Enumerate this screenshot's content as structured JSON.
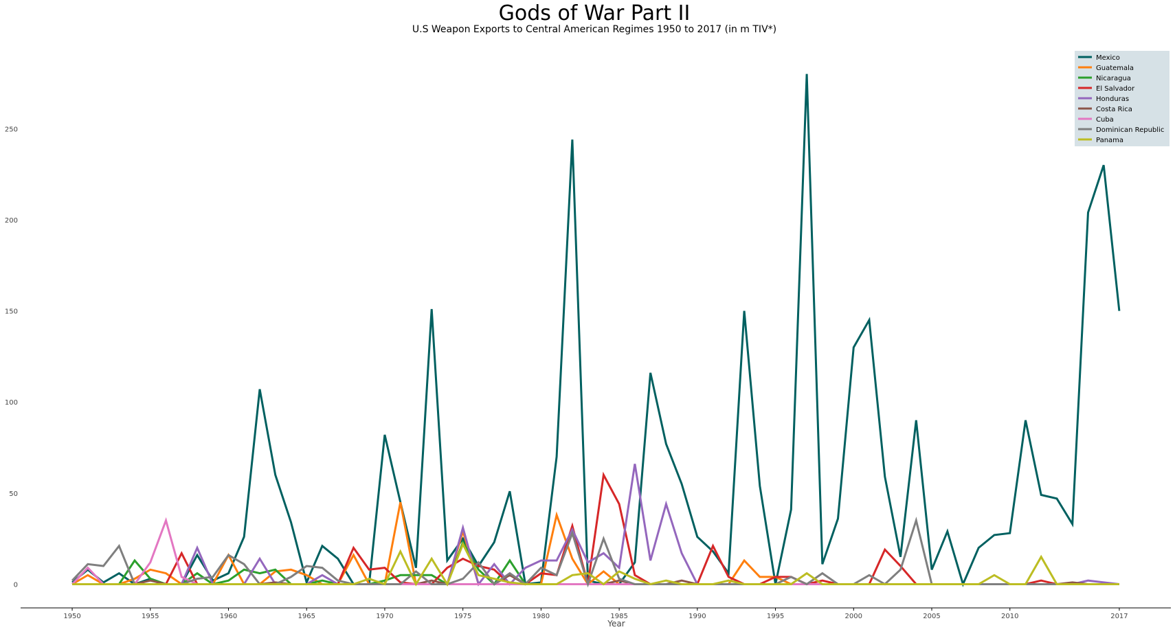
{
  "chart_data": {
    "type": "line",
    "title": "Gods of War Part II",
    "subtitle": "U.S Weapon Exports to Central American Regimes 1950 to 2017 (in m TIV*)",
    "xlabel": "Year",
    "ylabel": "",
    "xlim": [
      1946.7,
      2020.3
    ],
    "ylim": [
      -13,
      298
    ],
    "x_ticks": [
      1950,
      1955,
      1960,
      1965,
      1970,
      1975,
      1980,
      1985,
      1990,
      1995,
      2000,
      2005,
      2010,
      2017
    ],
    "y_ticks": [
      0,
      50,
      100,
      150,
      200,
      250
    ],
    "grid": false,
    "legend_position": "top-right",
    "x": [
      1950,
      1951,
      1952,
      1953,
      1954,
      1955,
      1956,
      1957,
      1958,
      1959,
      1960,
      1961,
      1962,
      1963,
      1964,
      1965,
      1966,
      1967,
      1968,
      1969,
      1970,
      1971,
      1972,
      1973,
      1974,
      1975,
      1976,
      1977,
      1978,
      1979,
      1980,
      1981,
      1982,
      1983,
      1984,
      1985,
      1986,
      1987,
      1988,
      1989,
      1990,
      1991,
      1992,
      1993,
      1994,
      1995,
      1996,
      1997,
      1998,
      1999,
      2000,
      2001,
      2002,
      2003,
      2004,
      2005,
      2006,
      2007,
      2008,
      2009,
      2010,
      2011,
      2012,
      2013,
      2014,
      2015,
      2016,
      2017
    ],
    "series": [
      {
        "name": "Mexico",
        "color": "#006060",
        "values": [
          1,
          8,
          1,
          6,
          0,
          3,
          0,
          0,
          16,
          2,
          6,
          26,
          107,
          60,
          34,
          1,
          21,
          14,
          0,
          0,
          82,
          45,
          9,
          151,
          13,
          25,
          10,
          23,
          51,
          0,
          1,
          70,
          244,
          2,
          0,
          0,
          12,
          116,
          77,
          55,
          26,
          18,
          6,
          150,
          54,
          0,
          41,
          280,
          11,
          36,
          130,
          145,
          59,
          15,
          90,
          8,
          29,
          0,
          20,
          27,
          28,
          90,
          49,
          47,
          33,
          204,
          230,
          150
        ]
      },
      {
        "name": "Guatemala",
        "color": "#ff7f0e",
        "values": [
          0,
          5,
          0,
          0,
          3,
          8,
          6,
          0,
          0,
          0,
          16,
          0,
          0,
          7,
          8,
          5,
          0,
          0,
          16,
          0,
          0,
          45,
          0,
          0,
          0,
          29,
          0,
          0,
          0,
          0,
          0,
          38,
          14,
          0,
          7,
          0,
          0,
          0,
          0,
          0,
          0,
          0,
          0,
          13,
          4,
          4,
          0,
          0,
          0,
          0,
          0,
          0,
          0,
          0,
          0,
          0,
          0,
          0,
          0,
          0,
          0,
          0,
          0,
          0,
          0,
          0,
          0,
          0
        ]
      },
      {
        "name": "Nicaragua",
        "color": "#2ca02c",
        "values": [
          0,
          0,
          0,
          0,
          13,
          3,
          0,
          0,
          6,
          0,
          2,
          8,
          6,
          8,
          0,
          0,
          2,
          0,
          0,
          0,
          2,
          5,
          5,
          5,
          0,
          23,
          8,
          0,
          13,
          0,
          0,
          0,
          0,
          0,
          0,
          0,
          0,
          0,
          0,
          0,
          0,
          0,
          0,
          0,
          0,
          0,
          0,
          0,
          0,
          0,
          0,
          0,
          0,
          0,
          0,
          0,
          0,
          0,
          0,
          0,
          0,
          0,
          0,
          0,
          0,
          0,
          0,
          0
        ]
      },
      {
        "name": "El Salvador",
        "color": "#d62728",
        "values": [
          0,
          0,
          0,
          0,
          0,
          0,
          0,
          17,
          0,
          0,
          0,
          0,
          0,
          0,
          0,
          0,
          0,
          0,
          20,
          8,
          9,
          1,
          0,
          0,
          9,
          14,
          10,
          8,
          0,
          0,
          6,
          5,
          32,
          0,
          60,
          44,
          5,
          0,
          0,
          0,
          0,
          21,
          4,
          0,
          0,
          4,
          4,
          0,
          2,
          0,
          0,
          0,
          19,
          10,
          0,
          0,
          0,
          0,
          0,
          0,
          0,
          0,
          2,
          0,
          0,
          0,
          0,
          0
        ]
      },
      {
        "name": "Honduras",
        "color": "#9467bd",
        "values": [
          0,
          0,
          0,
          0,
          0,
          0,
          0,
          0,
          20,
          0,
          0,
          0,
          14,
          0,
          0,
          0,
          5,
          0,
          0,
          0,
          0,
          0,
          0,
          0,
          0,
          31,
          0,
          11,
          0,
          9,
          13,
          13,
          30,
          12,
          17,
          9,
          66,
          13,
          44,
          17,
          0,
          0,
          0,
          0,
          0,
          0,
          0,
          0,
          0,
          0,
          0,
          0,
          0,
          0,
          0,
          0,
          0,
          0,
          0,
          0,
          0,
          0,
          0,
          0,
          0,
          2,
          1,
          0
        ]
      },
      {
        "name": "Costa Rica",
        "color": "#8c564b",
        "values": [
          0,
          0,
          0,
          0,
          0,
          2,
          0,
          0,
          0,
          0,
          0,
          0,
          0,
          1,
          0,
          0,
          0,
          0,
          0,
          0,
          0,
          0,
          0,
          2,
          0,
          0,
          0,
          0,
          5,
          0,
          0,
          0,
          0,
          0,
          0,
          2,
          0,
          0,
          0,
          2,
          0,
          0,
          0,
          0,
          0,
          0,
          0,
          0,
          0,
          0,
          0,
          0,
          0,
          0,
          0,
          0,
          0,
          0,
          0,
          0,
          0,
          0,
          0,
          0,
          1,
          0,
          0,
          0
        ]
      },
      {
        "name": "Cuba",
        "color": "#e377c2",
        "values": [
          0,
          9,
          0,
          0,
          0,
          12,
          35,
          4,
          0,
          0,
          0,
          0,
          0,
          0,
          0,
          0,
          0,
          0,
          0,
          0,
          0,
          0,
          0,
          0,
          0,
          0,
          0,
          0,
          0,
          0,
          0,
          0,
          0,
          0,
          0,
          0,
          0,
          0,
          0,
          0,
          0,
          0,
          0,
          0,
          0,
          0,
          0,
          0,
          0,
          0,
          0,
          0,
          0,
          0,
          0,
          0,
          0,
          0,
          0,
          0,
          0,
          0,
          0,
          0,
          0,
          0,
          0,
          0
        ]
      },
      {
        "name": "Dominican Republic",
        "color": "#7f7f7f",
        "values": [
          2,
          11,
          10,
          21,
          0,
          0,
          0,
          0,
          3,
          4,
          16,
          11,
          0,
          0,
          4,
          10,
          9,
          2,
          0,
          0,
          0,
          0,
          7,
          0,
          0,
          3,
          12,
          0,
          6,
          0,
          9,
          5,
          28,
          0,
          25,
          3,
          0,
          0,
          0,
          0,
          0,
          0,
          0,
          0,
          0,
          0,
          4,
          0,
          6,
          0,
          0,
          5,
          0,
          8,
          35,
          0,
          0,
          0,
          0,
          0,
          0,
          0,
          0,
          0,
          0,
          0,
          0,
          0
        ]
      },
      {
        "name": "Panama",
        "color": "#bcbd22",
        "values": [
          0,
          0,
          0,
          0,
          0,
          0,
          0,
          0,
          0,
          0,
          0,
          0,
          0,
          0,
          0,
          0,
          0,
          0,
          0,
          3,
          0,
          18,
          0,
          14,
          0,
          22,
          5,
          3,
          1,
          0,
          0,
          0,
          5,
          6,
          0,
          7,
          3,
          0,
          2,
          0,
          0,
          0,
          2,
          0,
          0,
          0,
          0,
          6,
          0,
          0,
          0,
          0,
          0,
          0,
          0,
          0,
          0,
          0,
          0,
          5,
          0,
          0,
          15,
          0,
          0,
          0,
          0,
          0
        ]
      }
    ]
  }
}
